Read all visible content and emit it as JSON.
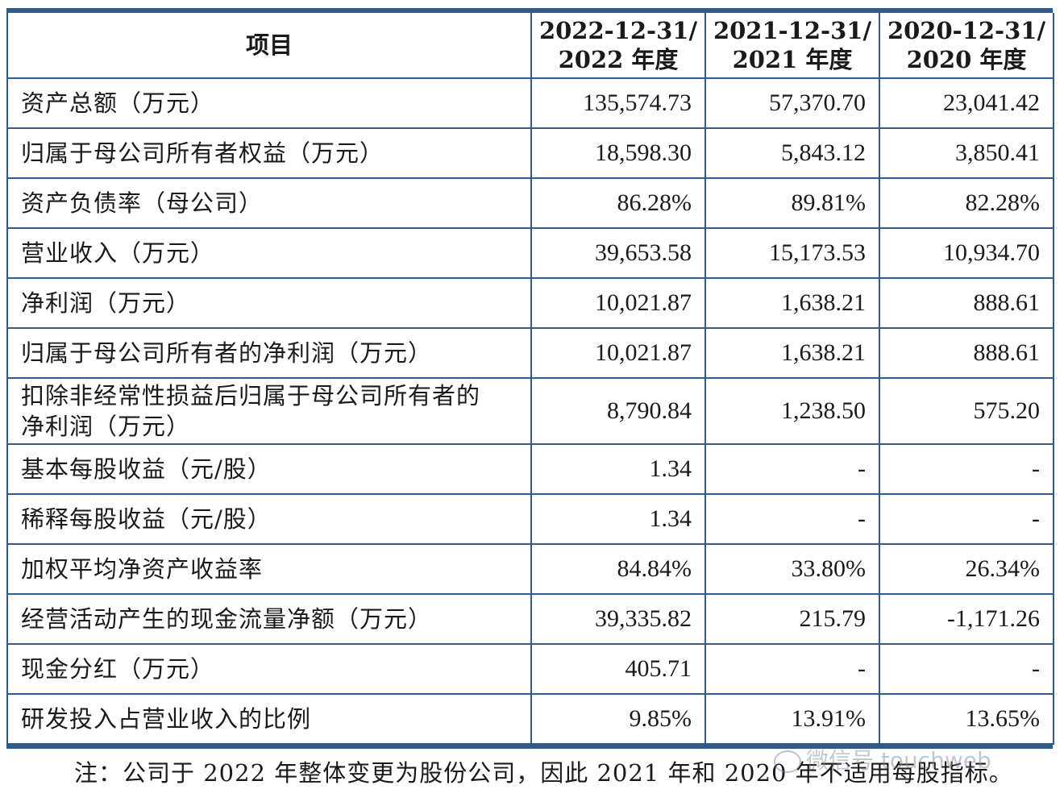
{
  "table": {
    "header": {
      "item": "项目",
      "cols": [
        {
          "date": "2022-12-31/",
          "year": "2022 年度"
        },
        {
          "date": "2021-12-31/",
          "year": "2021 年度"
        },
        {
          "date": "2020-12-31/",
          "year": "2020 年度"
        }
      ]
    },
    "rows": [
      {
        "label": "资产总额（万元）",
        "values": [
          "135,574.73",
          "57,370.70",
          "23,041.42"
        ]
      },
      {
        "label": "归属于母公司所有者权益（万元）",
        "values": [
          "18,598.30",
          "5,843.12",
          "3,850.41"
        ]
      },
      {
        "label": "资产负债率（母公司）",
        "values": [
          "86.28%",
          "89.81%",
          "82.28%"
        ]
      },
      {
        "label": "营业收入（万元）",
        "values": [
          "39,653.58",
          "15,173.53",
          "10,934.70"
        ]
      },
      {
        "label": "净利润（万元）",
        "values": [
          "10,021.87",
          "1,638.21",
          "888.61"
        ]
      },
      {
        "label": "归属于母公司所有者的净利润（万元）",
        "values": [
          "10,021.87",
          "1,638.21",
          "888.61"
        ]
      },
      {
        "label_line1": "扣除非经常性损益后归属于母公司所有者的",
        "label_line2": "净利润（万元）",
        "values": [
          "8,790.84",
          "1,238.50",
          "575.20"
        ]
      },
      {
        "label": "基本每股收益（元/股）",
        "values": [
          "1.34",
          "-",
          "-"
        ]
      },
      {
        "label": "稀释每股收益（元/股）",
        "values": [
          "1.34",
          "-",
          "-"
        ]
      },
      {
        "label": "加权平均净资产收益率",
        "values": [
          "84.84%",
          "33.80%",
          "26.34%"
        ]
      },
      {
        "label": "经营活动产生的现金流量净额（万元）",
        "values": [
          "39,335.82",
          "215.79",
          "-1,171.26"
        ]
      },
      {
        "label": "现金分红（万元）",
        "values": [
          "405.71",
          "-",
          "-"
        ]
      },
      {
        "label": "研发投入占营业收入的比例",
        "values": [
          "9.85%",
          "13.91%",
          "13.65%"
        ]
      }
    ]
  },
  "note": "注：公司于 2022 年整体变更为股份公司，因此 2021 年和 2020 年不适用每股指标。",
  "watermark": "微信号 touchweb",
  "colors": {
    "rule": "#2f5a8a"
  }
}
